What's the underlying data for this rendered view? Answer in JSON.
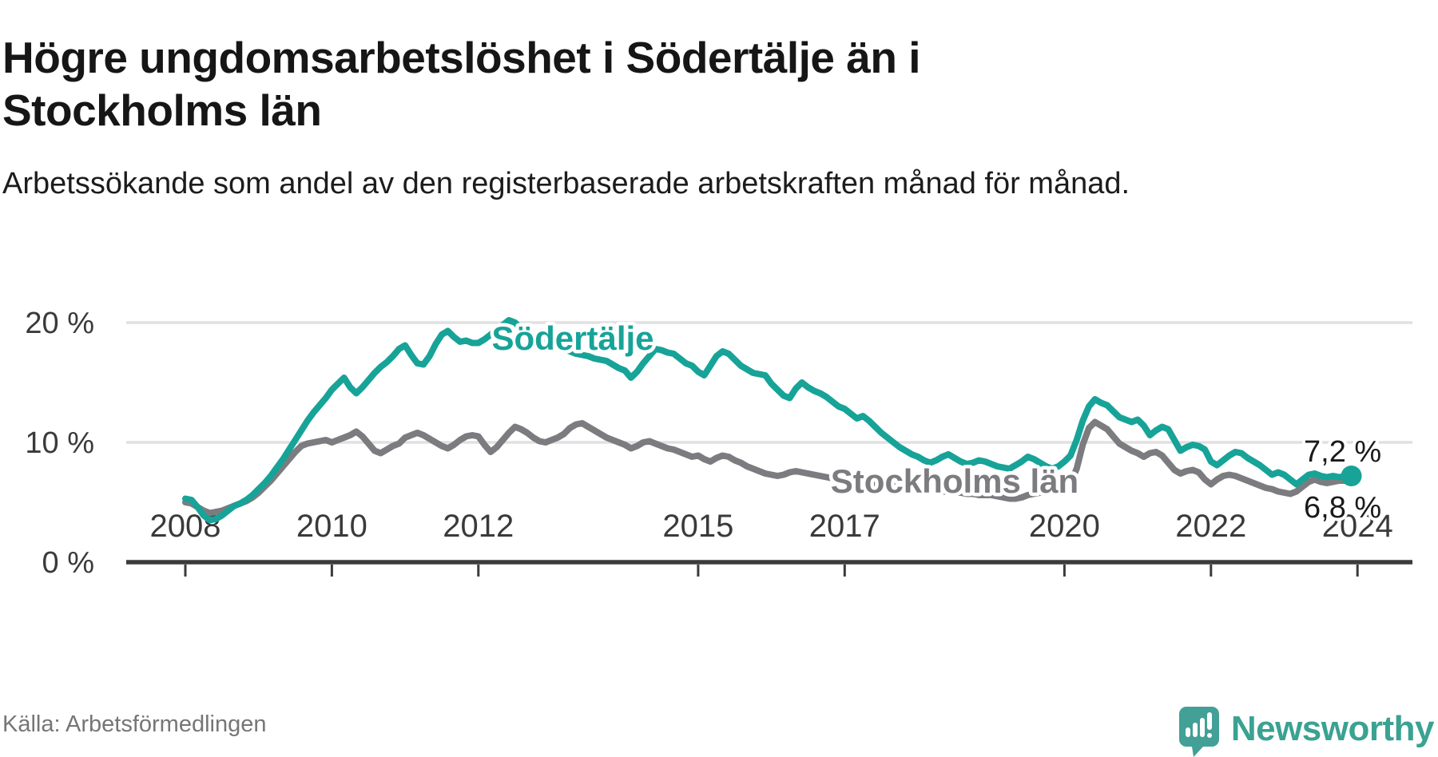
{
  "header": {
    "title_line1": "Högre ungdomsarbetslöshet i Södertälje än i",
    "title_line2": "Stockholms län",
    "subtitle": "Arbetssökande som andel av den registerbaserade arbetskraften månad för månad."
  },
  "footer": {
    "source": "Källa: Arbetsförmedlingen",
    "brand": "Newsworthy"
  },
  "colors": {
    "accent_teal": "#17a398",
    "line_gray": "#7c7c80",
    "grid": "#e1e1e1",
    "axis": "#3b3b3b",
    "tick_text": "#3a3a3a",
    "value_text": "#1a1a1a",
    "source_text": "#767676",
    "brand_teal": "#3aa292"
  },
  "chart_data": {
    "type": "line",
    "title": "Högre ungdomsarbetslöshet i Södertälje än i Stockholms län",
    "subtitle": "Arbetssökande som andel av den registerbaserade arbetskraften månad för månad.",
    "x_start_year": 2008,
    "x_frequency": "monthly",
    "xlabel": "",
    "ylabel": "",
    "ylim": [
      0,
      22
    ],
    "grid": "horizontal",
    "legend": "inline-labels",
    "yticks": [
      {
        "value": 0,
        "label": "0 %"
      },
      {
        "value": 10,
        "label": "10 %"
      },
      {
        "value": 20,
        "label": "20 %"
      }
    ],
    "xticks": [
      {
        "year": 2008,
        "label": "2008"
      },
      {
        "year": 2010,
        "label": "2010"
      },
      {
        "year": 2012,
        "label": "2012"
      },
      {
        "year": 2015,
        "label": "2015"
      },
      {
        "year": 2017,
        "label": "2017"
      },
      {
        "year": 2020,
        "label": "2020"
      },
      {
        "year": 2022,
        "label": "2022"
      },
      {
        "year": 2024,
        "label": "2024"
      }
    ],
    "series": [
      {
        "name": "Södertälje",
        "color": "#17a398",
        "end_label": "7,2 %",
        "end_value": 7.2,
        "values": [
          5.3,
          5.2,
          4.6,
          3.9,
          3.5,
          3.6,
          3.9,
          4.3,
          4.7,
          4.9,
          5.2,
          5.6,
          6.1,
          6.6,
          7.2,
          7.9,
          8.6,
          9.4,
          10.2,
          11.0,
          11.8,
          12.5,
          13.1,
          13.7,
          14.4,
          14.9,
          15.4,
          14.6,
          14.1,
          14.6,
          15.2,
          15.8,
          16.3,
          16.7,
          17.2,
          17.8,
          18.1,
          17.3,
          16.6,
          16.5,
          17.2,
          18.2,
          19.0,
          19.3,
          18.8,
          18.4,
          18.5,
          18.3,
          18.3,
          18.6,
          19.0,
          19.4,
          19.8,
          20.2,
          20.0,
          19.5,
          19.1,
          18.8,
          18.6,
          18.4,
          18.2,
          18.0,
          17.8,
          17.6,
          17.4,
          17.3,
          17.2,
          17.0,
          16.9,
          16.8,
          16.5,
          16.2,
          16.0,
          15.4,
          15.9,
          16.6,
          17.2,
          17.8,
          17.7,
          17.5,
          17.4,
          17.0,
          16.6,
          16.4,
          15.9,
          15.6,
          16.4,
          17.2,
          17.6,
          17.4,
          16.9,
          16.4,
          16.1,
          15.8,
          15.7,
          15.6,
          14.9,
          14.4,
          13.9,
          13.7,
          14.5,
          15.0,
          14.6,
          14.3,
          14.1,
          13.8,
          13.4,
          13.0,
          12.8,
          12.4,
          12.0,
          12.2,
          11.8,
          11.3,
          10.8,
          10.4,
          10.0,
          9.6,
          9.3,
          9.0,
          8.8,
          8.5,
          8.3,
          8.5,
          8.8,
          9.0,
          8.7,
          8.4,
          8.2,
          8.3,
          8.5,
          8.4,
          8.2,
          8.0,
          7.9,
          7.8,
          8.1,
          8.4,
          8.8,
          8.6,
          8.3,
          8.0,
          7.8,
          8.0,
          8.4,
          8.9,
          10.2,
          11.8,
          13.0,
          13.6,
          13.3,
          13.1,
          12.6,
          12.1,
          11.9,
          11.7,
          11.9,
          11.4,
          10.6,
          11.0,
          11.3,
          11.1,
          10.2,
          9.3,
          9.6,
          9.8,
          9.7,
          9.4,
          8.4,
          8.1,
          8.5,
          8.9,
          9.2,
          9.1,
          8.7,
          8.4,
          8.1,
          7.7,
          7.3,
          7.5,
          7.3,
          6.9,
          6.5,
          6.9,
          7.3,
          7.4,
          7.2,
          7.1,
          7.2,
          7.1,
          7.2,
          7.2
        ]
      },
      {
        "name": "Stockholms län",
        "color": "#7c7c80",
        "end_label": "6,8 %",
        "end_value": 6.8,
        "values": [
          5.0,
          4.9,
          4.6,
          4.3,
          4.1,
          4.2,
          4.3,
          4.5,
          4.7,
          4.9,
          5.1,
          5.4,
          5.8,
          6.3,
          6.8,
          7.4,
          8.0,
          8.6,
          9.2,
          9.7,
          9.9,
          10.0,
          10.1,
          10.2,
          10.0,
          10.2,
          10.4,
          10.6,
          10.9,
          10.5,
          9.9,
          9.3,
          9.1,
          9.4,
          9.7,
          9.9,
          10.4,
          10.6,
          10.8,
          10.6,
          10.3,
          10.0,
          9.7,
          9.5,
          9.8,
          10.2,
          10.5,
          10.6,
          10.5,
          9.8,
          9.2,
          9.6,
          10.2,
          10.8,
          11.3,
          11.1,
          10.8,
          10.4,
          10.1,
          10.0,
          10.2,
          10.4,
          10.7,
          11.2,
          11.5,
          11.6,
          11.3,
          11.0,
          10.7,
          10.4,
          10.2,
          10.0,
          9.8,
          9.5,
          9.7,
          10.0,
          10.1,
          9.9,
          9.7,
          9.5,
          9.4,
          9.2,
          9.0,
          8.8,
          8.9,
          8.6,
          8.4,
          8.7,
          8.9,
          8.8,
          8.5,
          8.3,
          8.0,
          7.8,
          7.6,
          7.4,
          7.3,
          7.2,
          7.3,
          7.5,
          7.6,
          7.5,
          7.4,
          7.3,
          7.2,
          7.1,
          7.0,
          6.9,
          6.9,
          6.8,
          6.7,
          6.7,
          6.6,
          6.6,
          6.5,
          6.4,
          6.4,
          6.3,
          6.3,
          6.2,
          6.2,
          6.1,
          6.0,
          6.0,
          5.9,
          5.9,
          5.8,
          5.8,
          5.7,
          5.7,
          5.6,
          5.6,
          5.6,
          5.5,
          5.4,
          5.3,
          5.3,
          5.4,
          5.6,
          5.7,
          5.8,
          5.9,
          6.0,
          6.1,
          6.3,
          6.6,
          7.8,
          9.8,
          11.2,
          11.7,
          11.4,
          11.1,
          10.5,
          9.9,
          9.6,
          9.3,
          9.1,
          8.8,
          9.1,
          9.2,
          8.9,
          8.3,
          7.7,
          7.4,
          7.6,
          7.7,
          7.5,
          6.9,
          6.5,
          6.9,
          7.2,
          7.3,
          7.2,
          7.0,
          6.8,
          6.6,
          6.4,
          6.2,
          6.1,
          5.9,
          5.8,
          5.7,
          5.9,
          6.3,
          6.7,
          6.9,
          6.7,
          6.6,
          6.7,
          6.8,
          6.8,
          6.8
        ]
      }
    ]
  }
}
